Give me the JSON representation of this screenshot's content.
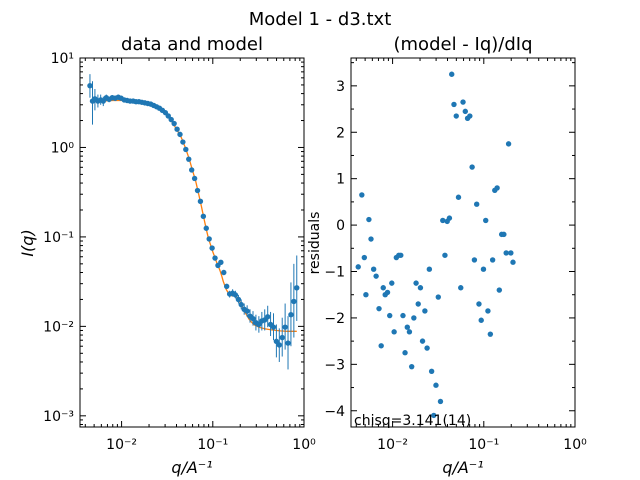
{
  "figure_title": "Model 1 - d3.txt",
  "colors": {
    "data": "#1f77b4",
    "model": "#ff7f0e",
    "axes": "#000000"
  },
  "chart_data": [
    {
      "type": "scatter",
      "title": "data and model",
      "xlabel": "q/A⁻¹",
      "ylabel": "I(q)",
      "xscale": "log",
      "yscale": "log",
      "xlim": [
        0.0035,
        1.0
      ],
      "ylim": [
        0.00075,
        10
      ],
      "xticks": [
        {
          "v": 0.01,
          "label": "10⁻²"
        },
        {
          "v": 0.1,
          "label": "10⁻¹"
        },
        {
          "v": 1,
          "label": "10⁰"
        }
      ],
      "yticks": [
        {
          "v": 0.001,
          "label": "10⁻³"
        },
        {
          "v": 0.01,
          "label": "10⁻²"
        },
        {
          "v": 0.1,
          "label": "10⁻¹"
        },
        {
          "v": 1,
          "label": "10⁰"
        },
        {
          "v": 10,
          "label": "10¹"
        }
      ],
      "grid": false,
      "series": [
        {
          "kind": "errorbar",
          "points": [
            {
              "x": 0.0045,
              "y": 4.9,
              "lo": 3.6,
              "hi": 6.6
            },
            {
              "x": 0.0048,
              "y": 3.3,
              "lo": 1.8,
              "hi": 5.5
            },
            {
              "x": 0.0051,
              "y": 3.5,
              "lo": 2.6,
              "hi": 4.5
            },
            {
              "x": 0.0055,
              "y": 3.3,
              "lo": 2.8,
              "hi": 3.9
            },
            {
              "x": 0.0059,
              "y": 3.4,
              "lo": 3.0,
              "hi": 3.9
            },
            {
              "x": 0.0063,
              "y": 3.3,
              "lo": 2.9,
              "hi": 3.7
            },
            {
              "x": 0.0068,
              "y": 3.6,
              "lo": 3.3,
              "hi": 3.9
            },
            {
              "x": 0.0073,
              "y": 3.45,
              "lo": 3.2,
              "hi": 3.7
            },
            {
              "x": 0.0079,
              "y": 3.6,
              "lo": 3.35,
              "hi": 3.85
            },
            {
              "x": 0.0085,
              "y": 3.55,
              "lo": 3.3,
              "hi": 3.8
            },
            {
              "x": 0.0092,
              "y": 3.65,
              "lo": 3.4,
              "hi": 3.9
            },
            {
              "x": 0.0099,
              "y": 3.55
            },
            {
              "x": 0.0107,
              "y": 3.4
            },
            {
              "x": 0.0115,
              "y": 3.35
            },
            {
              "x": 0.0124,
              "y": 3.3
            },
            {
              "x": 0.0134,
              "y": 3.3
            },
            {
              "x": 0.0144,
              "y": 3.25
            },
            {
              "x": 0.0155,
              "y": 3.25
            },
            {
              "x": 0.0167,
              "y": 3.2
            },
            {
              "x": 0.018,
              "y": 3.15
            },
            {
              "x": 0.0194,
              "y": 3.1
            },
            {
              "x": 0.0209,
              "y": 3.05
            },
            {
              "x": 0.0225,
              "y": 2.95
            },
            {
              "x": 0.0242,
              "y": 2.85
            },
            {
              "x": 0.026,
              "y": 2.75
            },
            {
              "x": 0.028,
              "y": 2.6
            },
            {
              "x": 0.0302,
              "y": 2.45
            },
            {
              "x": 0.0325,
              "y": 2.25
            },
            {
              "x": 0.035,
              "y": 2.05
            },
            {
              "x": 0.0377,
              "y": 1.85
            },
            {
              "x": 0.0406,
              "y": 1.6
            },
            {
              "x": 0.0437,
              "y": 1.4
            },
            {
              "x": 0.047,
              "y": 1.15
            },
            {
              "x": 0.0506,
              "y": 0.95
            },
            {
              "x": 0.0545,
              "y": 0.74
            },
            {
              "x": 0.0587,
              "y": 0.56
            },
            {
              "x": 0.0632,
              "y": 0.45
            },
            {
              "x": 0.068,
              "y": 0.33
            },
            {
              "x": 0.0732,
              "y": 0.25
            },
            {
              "x": 0.0788,
              "y": 0.17
            },
            {
              "x": 0.0848,
              "y": 0.125
            },
            {
              "x": 0.0913,
              "y": 0.095
            },
            {
              "x": 0.0983,
              "y": 0.075
            },
            {
              "x": 0.1058,
              "y": 0.058
            },
            {
              "x": 0.1139,
              "y": 0.048
            },
            {
              "x": 0.1226,
              "y": 0.052
            },
            {
              "x": 0.132,
              "y": 0.04
            },
            {
              "x": 0.142,
              "y": 0.028
            },
            {
              "x": 0.153,
              "y": 0.023,
              "lo": 0.021,
              "hi": 0.025
            },
            {
              "x": 0.165,
              "y": 0.0235,
              "lo": 0.0215,
              "hi": 0.026
            },
            {
              "x": 0.177,
              "y": 0.0225,
              "lo": 0.0205,
              "hi": 0.025
            },
            {
              "x": 0.191,
              "y": 0.02,
              "lo": 0.018,
              "hi": 0.0225
            },
            {
              "x": 0.205,
              "y": 0.0175,
              "lo": 0.0155,
              "hi": 0.02
            },
            {
              "x": 0.221,
              "y": 0.0155,
              "lo": 0.0135,
              "hi": 0.018
            },
            {
              "x": 0.238,
              "y": 0.0148,
              "lo": 0.0128,
              "hi": 0.0172
            },
            {
              "x": 0.256,
              "y": 0.013,
              "lo": 0.011,
              "hi": 0.0155
            },
            {
              "x": 0.276,
              "y": 0.0122,
              "lo": 0.0102,
              "hi": 0.0148
            },
            {
              "x": 0.297,
              "y": 0.011,
              "lo": 0.009,
              "hi": 0.0135
            },
            {
              "x": 0.32,
              "y": 0.0105,
              "lo": 0.0085,
              "hi": 0.013
            },
            {
              "x": 0.345,
              "y": 0.0115,
              "lo": 0.009,
              "hi": 0.0145
            },
            {
              "x": 0.371,
              "y": 0.0118,
              "lo": 0.009,
              "hi": 0.0155
            },
            {
              "x": 0.4,
              "y": 0.0128,
              "lo": 0.0098,
              "hi": 0.017
            },
            {
              "x": 0.43,
              "y": 0.0105,
              "lo": 0.0078,
              "hi": 0.0145
            },
            {
              "x": 0.463,
              "y": 0.0098,
              "lo": 0.007,
              "hi": 0.014
            },
            {
              "x": 0.498,
              "y": 0.0068,
              "lo": 0.0045,
              "hi": 0.0105
            },
            {
              "x": 0.536,
              "y": 0.0062,
              "lo": 0.004,
              "hi": 0.0095
            },
            {
              "x": 0.577,
              "y": 0.0075,
              "lo": 0.0046,
              "hi": 0.0125
            },
            {
              "x": 0.621,
              "y": 0.0098,
              "lo": 0.0055,
              "hi": 0.018
            },
            {
              "x": 0.668,
              "y": 0.0065,
              "lo": 0.0033,
              "hi": 0.013
            },
            {
              "x": 0.719,
              "y": 0.0135,
              "lo": 0.006,
              "hi": 0.031
            },
            {
              "x": 0.774,
              "y": 0.019,
              "lo": 0.0075,
              "hi": 0.05
            },
            {
              "x": 0.833,
              "y": 0.027,
              "lo": 0.0115,
              "hi": 0.062
            }
          ]
        },
        {
          "kind": "model-line",
          "points": [
            [
              0.0045,
              3.25
            ],
            [
              0.006,
              3.3
            ],
            [
              0.008,
              3.35
            ],
            [
              0.01,
              3.35
            ],
            [
              0.013,
              3.3
            ],
            [
              0.016,
              3.25
            ],
            [
              0.02,
              3.1
            ],
            [
              0.025,
              2.8
            ],
            [
              0.03,
              2.4
            ],
            [
              0.035,
              2.0
            ],
            [
              0.04,
              1.6
            ],
            [
              0.045,
              1.3
            ],
            [
              0.05,
              1.0
            ],
            [
              0.055,
              0.75
            ],
            [
              0.06,
              0.55
            ],
            [
              0.065,
              0.42
            ],
            [
              0.07,
              0.3
            ],
            [
              0.075,
              0.22
            ],
            [
              0.08,
              0.16
            ],
            [
              0.085,
              0.12
            ],
            [
              0.09,
              0.095
            ],
            [
              0.095,
              0.08
            ],
            [
              0.1,
              0.068
            ],
            [
              0.105,
              0.06
            ],
            [
              0.11,
              0.052
            ],
            [
              0.115,
              0.047
            ],
            [
              0.12,
              0.042
            ],
            [
              0.125,
              0.037
            ],
            [
              0.13,
              0.032
            ],
            [
              0.14,
              0.026
            ],
            [
              0.15,
              0.023
            ],
            [
              0.16,
              0.022
            ],
            [
              0.17,
              0.022
            ],
            [
              0.185,
              0.021
            ],
            [
              0.2,
              0.0185
            ],
            [
              0.22,
              0.015
            ],
            [
              0.25,
              0.012
            ],
            [
              0.28,
              0.0105
            ],
            [
              0.32,
              0.0098
            ],
            [
              0.37,
              0.0094
            ],
            [
              0.45,
              0.0091
            ],
            [
              0.55,
              0.0089
            ],
            [
              0.65,
              0.0088
            ],
            [
              0.75,
              0.0088
            ],
            [
              0.833,
              0.0088
            ]
          ]
        }
      ]
    },
    {
      "type": "scatter",
      "title": "(model - Iq)/dIq",
      "xlabel": "q/A⁻¹",
      "ylabel": "residuals",
      "xscale": "log",
      "yscale": "linear",
      "xlim": [
        0.0035,
        1.0
      ],
      "ylim": [
        -4.35,
        3.6
      ],
      "xticks": [
        {
          "v": 0.01,
          "label": "10⁻²"
        },
        {
          "v": 0.1,
          "label": "10⁻¹"
        },
        {
          "v": 1,
          "label": "10⁰"
        }
      ],
      "yticks": [
        {
          "v": -4,
          "label": "−4"
        },
        {
          "v": -3,
          "label": "−3"
        },
        {
          "v": -2,
          "label": "−2"
        },
        {
          "v": -1,
          "label": "−1"
        },
        {
          "v": 0,
          "label": "0"
        },
        {
          "v": 1,
          "label": "1"
        },
        {
          "v": 2,
          "label": "2"
        },
        {
          "v": 3,
          "label": "3"
        }
      ],
      "grid": false,
      "annotation": "chisq=3.141(14)",
      "points": [
        [
          0.0042,
          -0.9
        ],
        [
          0.0046,
          0.65
        ],
        [
          0.0049,
          -0.7
        ],
        [
          0.0051,
          -1.5
        ],
        [
          0.0055,
          0.12
        ],
        [
          0.0058,
          -0.3
        ],
        [
          0.0062,
          -0.95
        ],
        [
          0.0066,
          -1.1
        ],
        [
          0.0071,
          -1.8
        ],
        [
          0.0075,
          -2.6
        ],
        [
          0.0079,
          -1.35
        ],
        [
          0.0083,
          -1.5
        ],
        [
          0.0088,
          -1.45
        ],
        [
          0.0093,
          -1.95
        ],
        [
          0.0098,
          -1.25
        ],
        [
          0.0104,
          -2.3
        ],
        [
          0.011,
          -0.7
        ],
        [
          0.0117,
          -0.65
        ],
        [
          0.0123,
          -0.65
        ],
        [
          0.013,
          -1.95
        ],
        [
          0.0137,
          -2.75
        ],
        [
          0.0145,
          -2.2
        ],
        [
          0.0153,
          -2.3
        ],
        [
          0.0162,
          -3.05
        ],
        [
          0.0171,
          -2.0
        ],
        [
          0.0181,
          -1.25
        ],
        [
          0.0191,
          -1.7
        ],
        [
          0.0202,
          -1.35
        ],
        [
          0.0213,
          -2.5
        ],
        [
          0.0226,
          -1.85
        ],
        [
          0.0239,
          -2.65
        ],
        [
          0.0253,
          -0.95
        ],
        [
          0.0268,
          -3.15
        ],
        [
          0.0283,
          -4.1
        ],
        [
          0.0299,
          -3.45
        ],
        [
          0.0317,
          -1.55
        ],
        [
          0.0335,
          -3.8
        ],
        [
          0.0355,
          0.1
        ],
        [
          0.0375,
          -0.65
        ],
        [
          0.0397,
          0.08
        ],
        [
          0.042,
          0.15
        ],
        [
          0.0445,
          3.25
        ],
        [
          0.0471,
          2.6
        ],
        [
          0.0499,
          2.35
        ],
        [
          0.0528,
          0.6
        ],
        [
          0.0559,
          -1.35
        ],
        [
          0.0592,
          2.65
        ],
        [
          0.0627,
          2.45
        ],
        [
          0.0664,
          2.3
        ],
        [
          0.0703,
          2.35
        ],
        [
          0.0745,
          1.25
        ],
        [
          0.0789,
          -0.75
        ],
        [
          0.0836,
          0.45
        ],
        [
          0.0885,
          -1.7
        ],
        [
          0.0937,
          -2.05
        ],
        [
          0.0992,
          -0.95
        ],
        [
          0.105,
          0.1
        ],
        [
          0.111,
          -1.85
        ],
        [
          0.118,
          -2.35
        ],
        [
          0.125,
          -0.75
        ],
        [
          0.132,
          0.75
        ],
        [
          0.14,
          0.8
        ],
        [
          0.148,
          -1.4
        ],
        [
          0.157,
          -0.2
        ],
        [
          0.166,
          -0.2
        ],
        [
          0.176,
          -0.6
        ],
        [
          0.187,
          1.75
        ],
        [
          0.198,
          -0.6
        ],
        [
          0.209,
          -0.8
        ]
      ]
    }
  ]
}
